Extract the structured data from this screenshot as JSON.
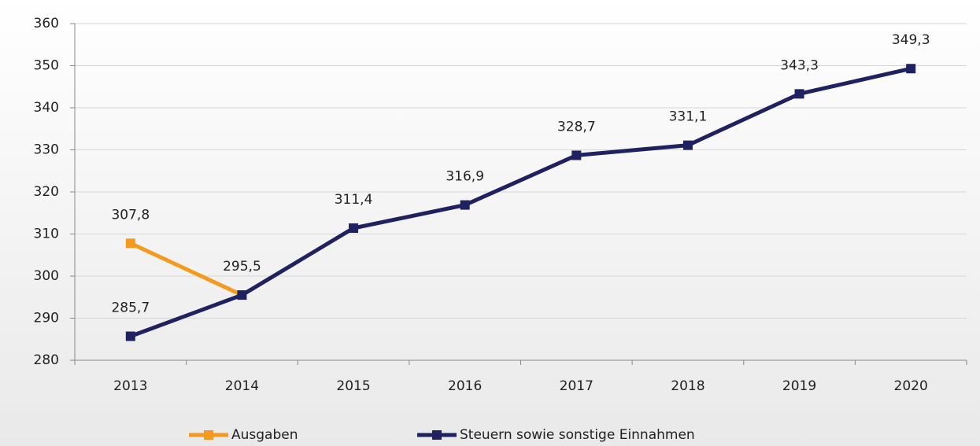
{
  "chart_data": {
    "type": "line",
    "categories": [
      "2013",
      "2014",
      "2015",
      "2016",
      "2017",
      "2018",
      "2019",
      "2020"
    ],
    "series": [
      {
        "name": "Ausgaben",
        "color": "#f49a1f",
        "values": [
          307.8,
          295.5,
          null,
          null,
          null,
          null,
          null,
          null
        ],
        "value_labels": [
          "307,8",
          null,
          null,
          null,
          null,
          null,
          null,
          null
        ]
      },
      {
        "name": "Steuern sowie sonstige Einnahmen",
        "color": "#1f2160",
        "values": [
          285.7,
          295.5,
          311.4,
          316.9,
          328.7,
          331.1,
          343.3,
          349.3
        ],
        "value_labels": [
          "285,7",
          "295,5",
          "311,4",
          "316,9",
          "328,7",
          "331,1",
          "343,3",
          "349,3"
        ]
      }
    ],
    "ylim": [
      280,
      360
    ],
    "yticks": [
      280,
      290,
      300,
      310,
      320,
      330,
      340,
      350,
      360
    ],
    "grid": true,
    "legend": "bottom"
  }
}
